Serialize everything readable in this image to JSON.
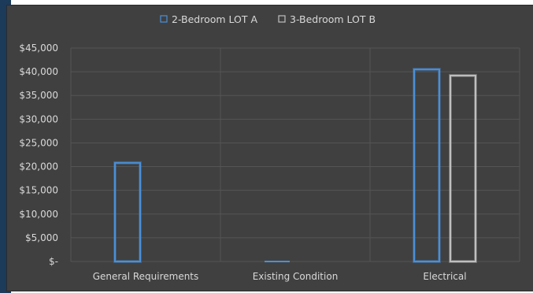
{
  "chart_data": {
    "type": "bar",
    "categories": [
      "General Requirements",
      "Existing Condition",
      "Electrical"
    ],
    "series": [
      {
        "name": "2-Bedroom LOT A",
        "values": [
          20800,
          0,
          40500
        ],
        "color": "#4a90d9"
      },
      {
        "name": "3-Bedroom LOT B",
        "values": [
          0,
          0,
          39200
        ],
        "color": "#bfbfbf"
      }
    ],
    "yticks": [
      "$-",
      "$5,000",
      "$10,000",
      "$15,000",
      "$20,000",
      "$25,000",
      "$30,000",
      "$35,000",
      "$40,000",
      "$45,000"
    ],
    "ylim": [
      0,
      45000
    ],
    "grid": true,
    "legend_position": "top-center",
    "title": "",
    "xlabel": "",
    "ylabel": ""
  }
}
